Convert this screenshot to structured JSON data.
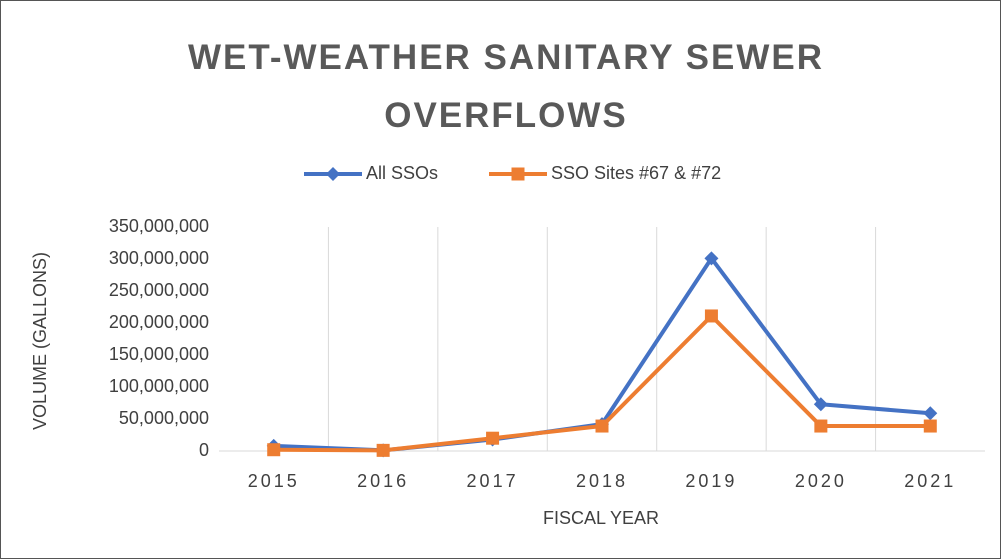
{
  "chart_data": {
    "type": "line",
    "title": "WET-WEATHER SANITARY SEWER OVERFLOWS",
    "x_label": "FISCAL YEAR",
    "y_label": "VOLUME (GALLONS)",
    "categories": [
      "2015",
      "2016",
      "2017",
      "2018",
      "2019",
      "2020",
      "2021"
    ],
    "series": [
      {
        "name": "All SSOs",
        "color": "#4472c4",
        "marker": "diamond",
        "values": [
          8000000,
          1000000,
          18000000,
          42000000,
          301000000,
          73000000,
          59000000
        ]
      },
      {
        "name": "SSO Sites #67 & #72",
        "color": "#ed7d31",
        "marker": "square",
        "values": [
          2000000,
          1000000,
          20000000,
          39000000,
          211000000,
          39000000,
          39000000
        ]
      }
    ],
    "ylim": [
      0,
      350000000
    ],
    "yticks": [
      0,
      {
        "value": 50000000,
        "label": "50,000,000"
      },
      {
        "value": 100000000,
        "label": "100,000,000"
      },
      {
        "value": 150000000,
        "label": "150,000,000"
      },
      {
        "value": 200000000,
        "label": "200,000,000"
      },
      {
        "value": 250000000,
        "label": "250,000,000"
      },
      {
        "value": 300000000,
        "label": "300,000,000"
      },
      {
        "value": 350000000,
        "label": "350,000,000"
      }
    ],
    "grid": "x",
    "legend": "top"
  }
}
